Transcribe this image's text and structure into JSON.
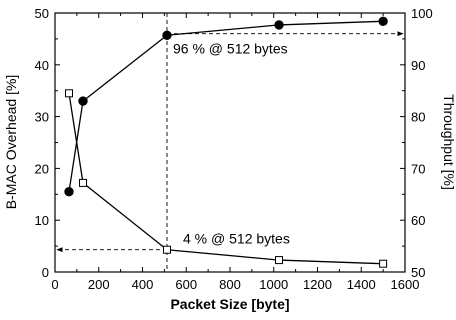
{
  "chart_data": {
    "type": "line",
    "xlabel": "Packet Size [byte]",
    "ylabel_left": "B-MAC Overhead [%]",
    "ylabel_right": "Throughput [%]",
    "xlim": [
      0,
      1600
    ],
    "ylim_left": [
      0,
      50
    ],
    "ylim_right": [
      50,
      100
    ],
    "x_ticks": [
      0,
      200,
      400,
      600,
      800,
      1000,
      1200,
      1400,
      1600
    ],
    "y_ticks_left": [
      0,
      10,
      20,
      30,
      40,
      50
    ],
    "y_ticks_right": [
      50,
      60,
      70,
      80,
      90,
      100
    ],
    "series": [
      {
        "axis": "right",
        "marker": "filled-circle",
        "x": [
          64,
          128,
          512,
          1024,
          1500
        ],
        "y": [
          65.5,
          83,
          95.7,
          97.7,
          98.4
        ]
      },
      {
        "axis": "left",
        "marker": "open-square",
        "x": [
          64,
          128,
          512,
          1024,
          1500
        ],
        "y": [
          34.5,
          17.2,
          4.3,
          2.3,
          1.6
        ]
      }
    ],
    "annotations": [
      {
        "text": "96 % @ 512 bytes",
        "x": 512,
        "y": 96,
        "axis": "right",
        "arrow": "right"
      },
      {
        "text": "4 % @ 512 bytes",
        "x": 512,
        "y": 4.3,
        "axis": "left",
        "arrow": "left"
      }
    ],
    "guide_x": 512,
    "grid": false
  }
}
